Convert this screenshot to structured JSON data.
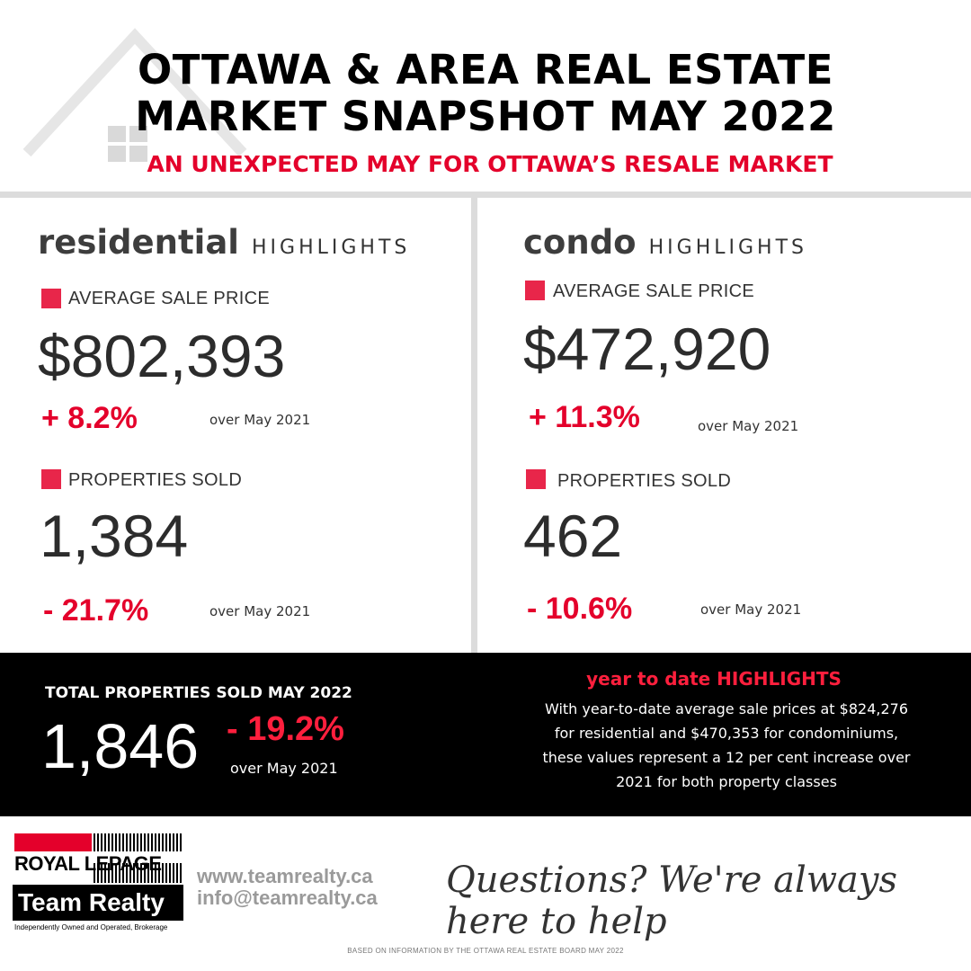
{
  "header": {
    "title_line1": "OTTAWA & AREA REAL ESTATE",
    "title_line2": "MARKET SNAPSHOT MAY 2022",
    "subtitle": "AN UNEXPECTED MAY FOR OTTAWA’S RESALE MARKET"
  },
  "residential": {
    "word": "residential",
    "highlights": "HIGHLIGHTS",
    "avg_label": "AVERAGE SALE PRICE",
    "avg_price": "$802,393",
    "avg_change": "+ 8.2%",
    "avg_over": "over May 2021",
    "sold_label": "PROPERTIES SOLD",
    "sold": "1,384",
    "sold_change": "- 21.7%",
    "sold_over": "over May 2021"
  },
  "condo": {
    "word": "condo",
    "highlights": "HIGHLIGHTS",
    "avg_label": "AVERAGE SALE PRICE",
    "avg_price": "$472,920",
    "avg_change": "+ 11.3%",
    "avg_over": "over May 2021",
    "sold_label": "PROPERTIES SOLD",
    "sold": "462",
    "sold_change": "- 10.6%",
    "sold_over": "over May 2021"
  },
  "total": {
    "label": "TOTAL PROPERTIES SOLD MAY 2022",
    "value": "1,846",
    "change": "- 19.2%",
    "over": "over May 2021"
  },
  "ytd": {
    "title": "year to date HIGHLIGHTS",
    "line1": "With year-to-date average sale prices at $824,276",
    "line2": "for residential and $470,353 for condominiums,",
    "line3": "these values represent a 12 per cent increase over",
    "line4": "2021 for both property classes"
  },
  "footer": {
    "logo_royal": "ROYAL LEPAGE",
    "logo_team": "Team Realty",
    "logo_sub": "Independently Owned and Operated, Brokerage",
    "website": "www.teamrealty.ca",
    "email": "info@teamrealty.ca",
    "tagline": "Questions? We're always here to help",
    "footnote": "BASED ON INFORMATION BY THE OTTAWA REAL ESTATE BOARD MAY 2022"
  },
  "colors": {
    "accent": "#e4002b",
    "black_band": "#000000",
    "divider": "#dcdcdc"
  }
}
